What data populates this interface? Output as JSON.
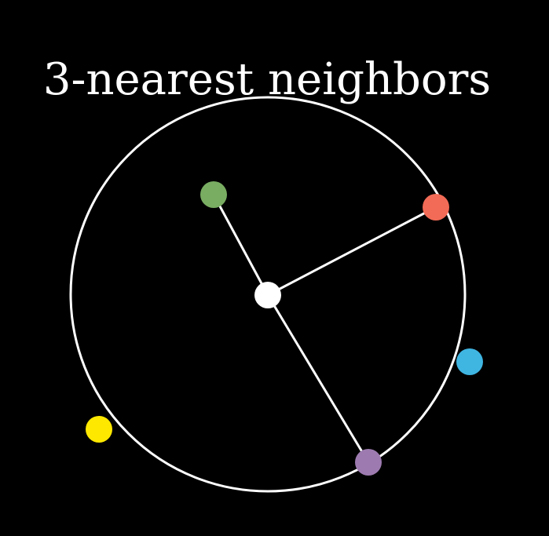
{
  "title": "3-nearest neighbors",
  "query_point": {
    "name": "query-point",
    "color": "#ffffff"
  },
  "neighbors": [
    {
      "name": "green-neighbor-point",
      "color": "#79ad62",
      "connected": true
    },
    {
      "name": "red-neighbor-point",
      "color": "#f26b56",
      "connected": true
    },
    {
      "name": "purple-neighbor-point",
      "color": "#9d7bb0",
      "connected": true
    }
  ],
  "other_points": [
    {
      "name": "blue-point",
      "color": "#3fb5e2"
    },
    {
      "name": "yellow-point",
      "color": "#ffe800"
    }
  ],
  "circle": {
    "color": "#ffffff"
  },
  "background": "#000000"
}
